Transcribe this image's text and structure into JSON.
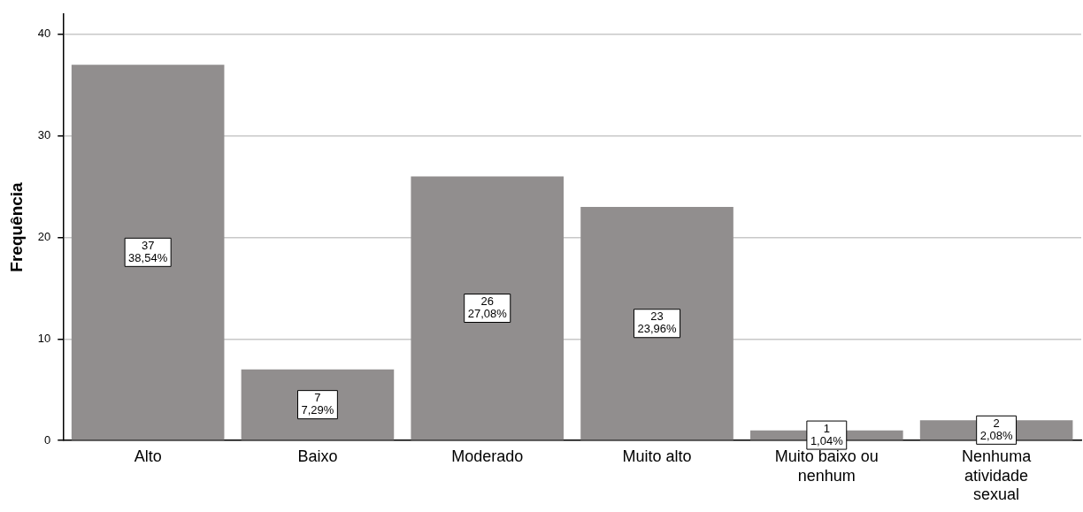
{
  "chart_data": {
    "type": "bar",
    "ylabel": "Frequência",
    "categories": [
      "Alto",
      "Baixo",
      "Moderado",
      "Muito alto",
      "Muito baixo ou nenhum",
      "Nenhuma atividade sexual"
    ],
    "values": [
      37,
      7,
      26,
      23,
      1,
      2
    ],
    "value_labels": [
      "37\n38,54%",
      "7\n7,29%",
      "26\n27,08%",
      "23\n23,96%",
      "1\n1,04%",
      "2\n2,08%"
    ],
    "color": "#918e8e",
    "ylim": [
      0,
      42
    ],
    "yticks": [
      0,
      10,
      20,
      30,
      40
    ],
    "grid": "y",
    "legend": false
  }
}
